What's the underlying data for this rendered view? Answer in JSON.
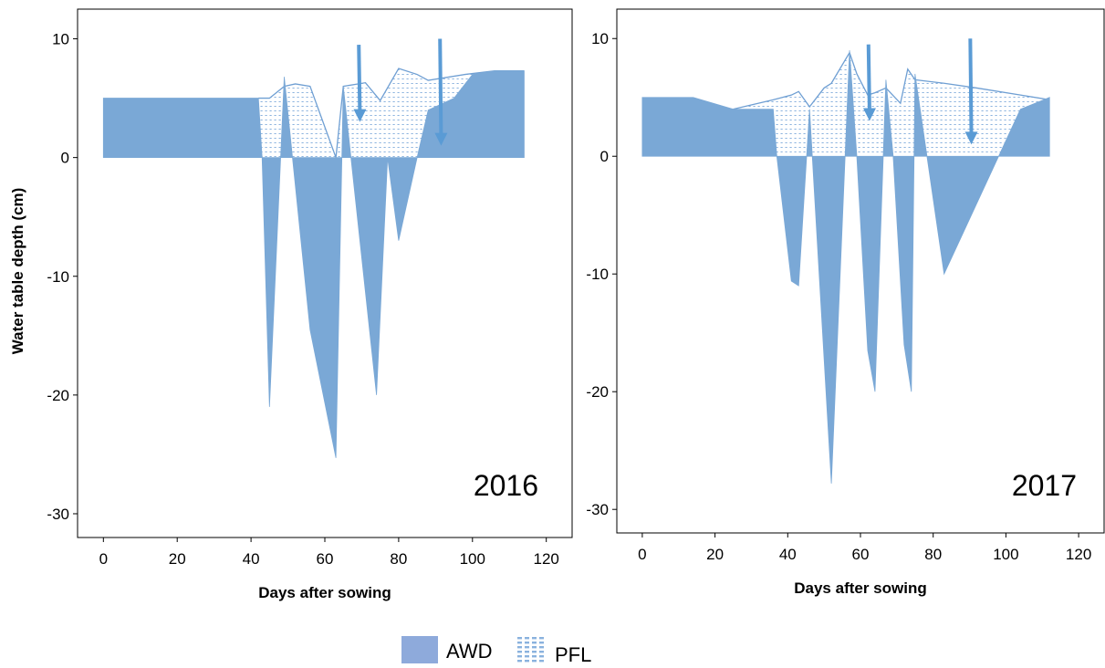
{
  "colors": {
    "awd_fill": "#7aa8d6",
    "pfl_line": "#6f9fd3",
    "pfl_dot": "#8ab2de",
    "arrow": "#5a9bd5",
    "legend_awd": "#8eaadb"
  },
  "chart_data": [
    {
      "type": "area",
      "year_label": "2016",
      "xlabel": "Days after sowing",
      "ylabel": "Water table depth (cm)",
      "xlim": [
        -7,
        127
      ],
      "ylim": [
        -32,
        12.5
      ],
      "xticks": [
        0,
        20,
        40,
        60,
        80,
        100,
        120
      ],
      "yticks": [
        10,
        0,
        -10,
        -20,
        -30
      ],
      "series": [
        {
          "name": "AWD",
          "x": [
            0,
            42,
            43,
            45,
            49,
            56,
            63,
            65,
            74,
            77,
            80,
            85,
            88,
            95,
            100,
            106,
            114
          ],
          "y": [
            5,
            5,
            0,
            -21,
            6.8,
            -14.5,
            -25.3,
            6,
            -20,
            0,
            -7,
            0,
            4,
            5,
            7,
            7.3,
            7.3
          ]
        },
        {
          "name": "PFL",
          "x": [
            42,
            45,
            49,
            52,
            56,
            63,
            65,
            71,
            75,
            80,
            85,
            88,
            98,
            106,
            114
          ],
          "y": [
            5,
            5,
            6,
            6.2,
            6,
            0,
            6,
            6.3,
            4.8,
            7.5,
            7,
            6.5,
            7,
            7.3,
            7.3
          ]
        }
      ],
      "arrows_at_days": [
        69.5,
        91.5
      ]
    },
    {
      "type": "area",
      "year_label": "2017",
      "xlabel": "Days after sowing",
      "ylabel": "",
      "xlim": [
        -7,
        127
      ],
      "ylim": [
        -32,
        12.5
      ],
      "xticks": [
        0,
        20,
        40,
        60,
        80,
        100,
        120
      ],
      "yticks": [
        10,
        0,
        -10,
        -20,
        -30
      ],
      "series": [
        {
          "name": "AWD",
          "x": [
            0,
            14,
            25,
            36,
            37,
            41,
            43,
            46,
            52,
            57,
            59,
            62,
            64,
            67,
            69,
            72,
            74,
            75,
            83,
            98,
            104,
            112
          ],
          "y": [
            5,
            5,
            4,
            4,
            0,
            -10.6,
            -11,
            4,
            -27.8,
            9,
            0,
            -16.5,
            -20,
            6.5,
            0,
            -16,
            -20,
            7,
            -10,
            0,
            4,
            5
          ]
        },
        {
          "name": "PFL",
          "x": [
            25,
            36,
            41,
            43,
            46,
            50,
            52,
            57,
            59,
            62,
            64,
            67,
            71,
            73,
            75,
            83,
            92,
            104,
            112
          ],
          "y": [
            4,
            4.8,
            5.2,
            5.5,
            4.2,
            5.8,
            6.2,
            8.8,
            7,
            5.2,
            5.4,
            5.8,
            4.5,
            7.4,
            6.5,
            6.2,
            5.8,
            5.2,
            4.8
          ]
        }
      ],
      "arrows_at_days": [
        62.5,
        90.5
      ]
    }
  ],
  "legend": {
    "awd_label": "AWD",
    "pfl_label": "PFL"
  }
}
